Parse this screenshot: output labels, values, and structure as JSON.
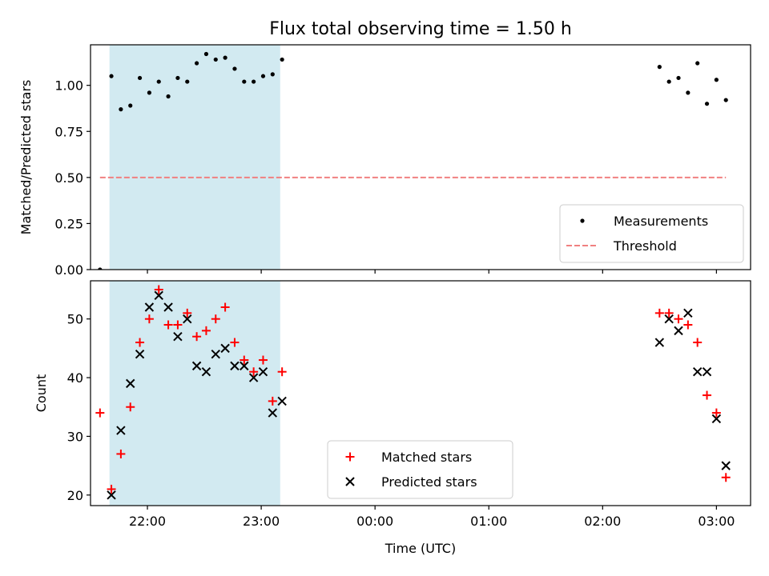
{
  "chart_data": {
    "title": "Flux total observing time = 1.50 h",
    "x_axis": {
      "label": "Time (UTC)",
      "ticks": [
        "22:00",
        "23:00",
        "00:00",
        "01:00",
        "02:00",
        "03:00"
      ],
      "range": [
        "21:30",
        "03:18"
      ]
    },
    "shaded_interval": {
      "start": "21:40",
      "end": "23:10",
      "color": "#add8e6"
    },
    "panels": [
      {
        "type": "scatter",
        "ylabel": "Matched/Predicted stars",
        "ylim": [
          0,
          1.22
        ],
        "yticks": [
          "0.00",
          "0.25",
          "0.50",
          "0.75",
          "1.00"
        ],
        "series": [
          {
            "name": "Measurements",
            "color": "#000000",
            "marker": "dot",
            "points": [
              [
                "21:35",
                0.0
              ],
              [
                "21:41",
                1.05
              ],
              [
                "21:46",
                0.87
              ],
              [
                "21:51",
                0.89
              ],
              [
                "21:56",
                1.04
              ],
              [
                "22:01",
                0.96
              ],
              [
                "22:06",
                1.02
              ],
              [
                "22:11",
                0.94
              ],
              [
                "22:16",
                1.04
              ],
              [
                "22:21",
                1.02
              ],
              [
                "22:26",
                1.12
              ],
              [
                "22:31",
                1.17
              ],
              [
                "22:36",
                1.14
              ],
              [
                "22:41",
                1.15
              ],
              [
                "22:46",
                1.09
              ],
              [
                "22:51",
                1.02
              ],
              [
                "22:56",
                1.02
              ],
              [
                "23:01",
                1.05
              ],
              [
                "23:06",
                1.06
              ],
              [
                "23:11",
                1.14
              ],
              [
                "02:30",
                1.1
              ],
              [
                "02:35",
                1.02
              ],
              [
                "02:40",
                1.04
              ],
              [
                "02:45",
                0.96
              ],
              [
                "02:50",
                1.12
              ],
              [
                "02:55",
                0.9
              ],
              [
                "03:00",
                1.03
              ],
              [
                "03:05",
                0.92
              ]
            ]
          },
          {
            "name": "Threshold",
            "color": "#f08080",
            "style": "dashed",
            "points": [
              [
                "21:35",
                0.5
              ],
              [
                "03:05",
                0.5
              ]
            ]
          }
        ],
        "legend_position": "lower-right"
      },
      {
        "type": "scatter",
        "ylabel": "Count",
        "ylim": [
          18.2,
          56.5
        ],
        "yticks": [
          "20",
          "30",
          "40",
          "50"
        ],
        "series": [
          {
            "name": "Matched stars",
            "color": "#ff0000",
            "marker": "plus",
            "points": [
              [
                "21:35",
                34
              ],
              [
                "21:41",
                21
              ],
              [
                "21:46",
                27
              ],
              [
                "21:51",
                35
              ],
              [
                "21:56",
                46
              ],
              [
                "22:01",
                50
              ],
              [
                "22:06",
                55
              ],
              [
                "22:11",
                49
              ],
              [
                "22:16",
                49
              ],
              [
                "22:21",
                51
              ],
              [
                "22:26",
                47
              ],
              [
                "22:31",
                48
              ],
              [
                "22:36",
                50
              ],
              [
                "22:41",
                52
              ],
              [
                "22:46",
                46
              ],
              [
                "22:51",
                43
              ],
              [
                "22:56",
                41
              ],
              [
                "23:01",
                43
              ],
              [
                "23:06",
                36
              ],
              [
                "23:11",
                41
              ],
              [
                "02:30",
                51
              ],
              [
                "02:35",
                51
              ],
              [
                "02:40",
                50
              ],
              [
                "02:45",
                49
              ],
              [
                "02:50",
                46
              ],
              [
                "02:55",
                37
              ],
              [
                "03:00",
                34
              ],
              [
                "03:05",
                23
              ]
            ]
          },
          {
            "name": "Predicted stars",
            "color": "#000000",
            "marker": "x",
            "points": [
              [
                "21:41",
                20
              ],
              [
                "21:46",
                31
              ],
              [
                "21:51",
                39
              ],
              [
                "21:56",
                44
              ],
              [
                "22:01",
                52
              ],
              [
                "22:06",
                54
              ],
              [
                "22:11",
                52
              ],
              [
                "22:16",
                47
              ],
              [
                "22:21",
                50
              ],
              [
                "22:26",
                42
              ],
              [
                "22:31",
                41
              ],
              [
                "22:36",
                44
              ],
              [
                "22:41",
                45
              ],
              [
                "22:46",
                42
              ],
              [
                "22:51",
                42
              ],
              [
                "22:56",
                40
              ],
              [
                "23:01",
                41
              ],
              [
                "23:06",
                34
              ],
              [
                "23:11",
                36
              ],
              [
                "02:30",
                46
              ],
              [
                "02:35",
                50
              ],
              [
                "02:40",
                48
              ],
              [
                "02:45",
                51
              ],
              [
                "02:50",
                41
              ],
              [
                "02:55",
                41
              ],
              [
                "03:00",
                33
              ],
              [
                "03:05",
                25
              ]
            ]
          }
        ],
        "legend_position": "lower-center"
      }
    ]
  }
}
